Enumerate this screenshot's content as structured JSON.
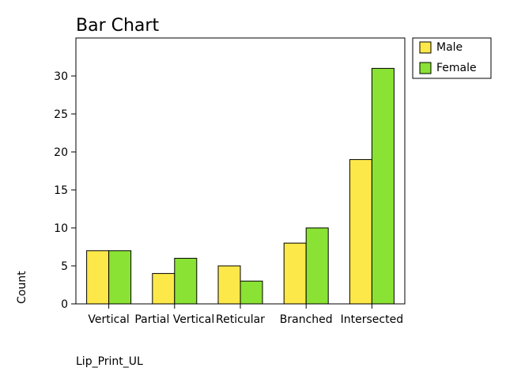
{
  "chart_data": {
    "type": "bar",
    "title": "Bar Chart",
    "xlabel": "Lip_Print_UL",
    "ylabel": "Count",
    "categories": [
      "Vertical",
      "Partial Vertical",
      "Reticular",
      "Branched",
      "Intersected"
    ],
    "series": [
      {
        "name": "Male",
        "values": [
          7,
          4,
          5,
          8,
          19
        ],
        "color": "#fde84a"
      },
      {
        "name": "Female",
        "values": [
          7,
          6,
          3,
          10,
          31
        ],
        "color": "#8ae234"
      }
    ],
    "ylim": [
      0,
      35
    ],
    "yticks": [
      0,
      5,
      10,
      15,
      20,
      25,
      30
    ],
    "grid": false,
    "legend": "outside-top-right"
  }
}
